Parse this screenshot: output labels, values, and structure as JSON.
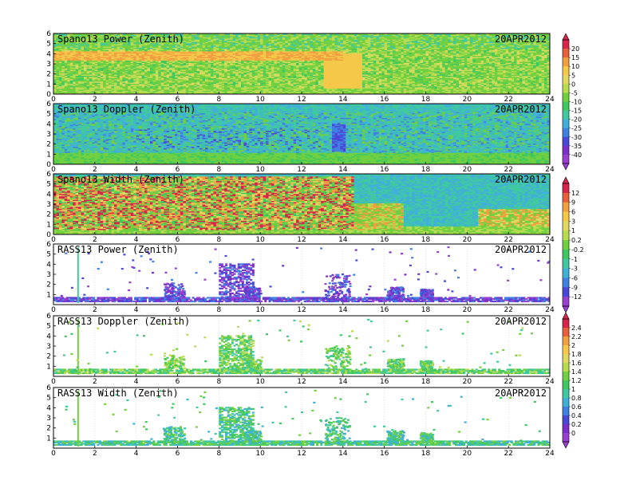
{
  "figure": {
    "date_label": "20APR2012"
  },
  "chart_data": [
    {
      "type": "heatmap",
      "title": "Spano13 Power (Zenith)",
      "date": "20APR2012",
      "x": {
        "ticks": [
          0,
          2,
          4,
          6,
          8,
          10,
          12,
          14,
          16,
          18,
          20,
          22,
          24
        ],
        "range": [
          0,
          24
        ]
      },
      "y": {
        "ticks": [
          0,
          1,
          2,
          3,
          4,
          5,
          6
        ],
        "range": [
          0,
          6
        ]
      },
      "colorscale": "scale1",
      "kind": "power"
    },
    {
      "type": "heatmap",
      "title": "Spano13 Doppler (Zenith)",
      "date": "20APR2012",
      "x": {
        "ticks": [
          0,
          2,
          4,
          6,
          8,
          10,
          12,
          14,
          16,
          18,
          20,
          22,
          24
        ],
        "range": [
          0,
          24
        ]
      },
      "y": {
        "ticks": [
          0,
          1,
          2,
          3,
          4,
          5,
          6
        ],
        "range": [
          0,
          6
        ]
      },
      "colorscale": "scale1",
      "kind": "doppler"
    },
    {
      "type": "heatmap",
      "title": "Spano13 Width (Zenith)",
      "date": "20APR2012",
      "x": {
        "ticks": [
          0,
          2,
          4,
          6,
          8,
          10,
          12,
          14,
          16,
          18,
          20,
          22,
          24
        ],
        "range": [
          0,
          24
        ]
      },
      "y": {
        "ticks": [
          0,
          1,
          2,
          3,
          4,
          5,
          6
        ],
        "range": [
          0,
          6
        ]
      },
      "colorscale": "scale2",
      "kind": "width"
    },
    {
      "type": "heatmap",
      "title": "RASS13 Power (Zenith)",
      "date": "20APR2012",
      "x": {
        "ticks": [
          0,
          2,
          4,
          6,
          8,
          10,
          12,
          14,
          16,
          18,
          20,
          22,
          24
        ],
        "range": [
          0,
          24
        ]
      },
      "y": {
        "ticks": [
          1,
          2,
          3,
          4,
          5,
          6
        ],
        "range": [
          0,
          6
        ]
      },
      "colorscale": "scale2",
      "kind": "rass_power"
    },
    {
      "type": "heatmap",
      "title": "RASS13 Doppler (Zenith)",
      "date": "20APR2012",
      "x": {
        "ticks": [
          0,
          2,
          4,
          6,
          8,
          10,
          12,
          14,
          16,
          18,
          20,
          22,
          24
        ],
        "range": [
          0,
          24
        ]
      },
      "y": {
        "ticks": [
          1,
          2,
          3,
          4,
          5,
          6
        ],
        "range": [
          0,
          6
        ]
      },
      "colorscale": "scale3",
      "kind": "rass_doppler"
    },
    {
      "type": "heatmap",
      "title": "RASS13 Width (Zenith)",
      "date": "20APR2012",
      "x": {
        "ticks": [
          0,
          2,
          4,
          6,
          8,
          10,
          12,
          14,
          16,
          18,
          20,
          22,
          24
        ],
        "range": [
          0,
          24
        ]
      },
      "y": {
        "ticks": [
          1,
          2,
          3,
          4,
          5,
          6
        ],
        "range": [
          0,
          6
        ]
      },
      "colorscale": "scale3",
      "kind": "rass_width"
    }
  ],
  "colorbars": {
    "scale1": {
      "labels": [
        "20",
        "15",
        "10",
        "5",
        "0",
        "-5",
        "-10",
        "-15",
        "-20",
        "-25",
        "-30",
        "-35",
        "-40"
      ],
      "colors": [
        "#d8264a",
        "#e8603a",
        "#f0a040",
        "#f5c84a",
        "#e0d860",
        "#b8dc50",
        "#70d040",
        "#40c860",
        "#40c8a0",
        "#40b0d8",
        "#4080e0",
        "#4a48d8",
        "#7a30c8",
        "#9a40d0"
      ]
    },
    "scale2": {
      "labels": [
        "12",
        "9",
        "6",
        "3",
        "1",
        "0.2",
        "-0.2",
        "-1",
        "-3",
        "-6",
        "-9",
        "-12"
      ],
      "colors": [
        "#d8264a",
        "#e8603a",
        "#f0a040",
        "#f5c84a",
        "#e0d860",
        "#b8dc50",
        "#70d040",
        "#40c860",
        "#40c8a0",
        "#40b0d8",
        "#4080e0",
        "#4a48d8",
        "#9a40d0"
      ]
    },
    "scale3": {
      "labels": [
        "2.4",
        "2.2",
        "2",
        "1.8",
        "1.6",
        "1.4",
        "1.2",
        "1",
        "0.8",
        "0.6",
        "0.4",
        "0.2",
        "0"
      ],
      "colors": [
        "#d8264a",
        "#e8603a",
        "#f0a040",
        "#f5c84a",
        "#e0d860",
        "#b8dc50",
        "#70d040",
        "#40c860",
        "#40c8a0",
        "#40b0d8",
        "#4080e0",
        "#4a48d8",
        "#7a30c8",
        "#9a40d0"
      ]
    }
  }
}
